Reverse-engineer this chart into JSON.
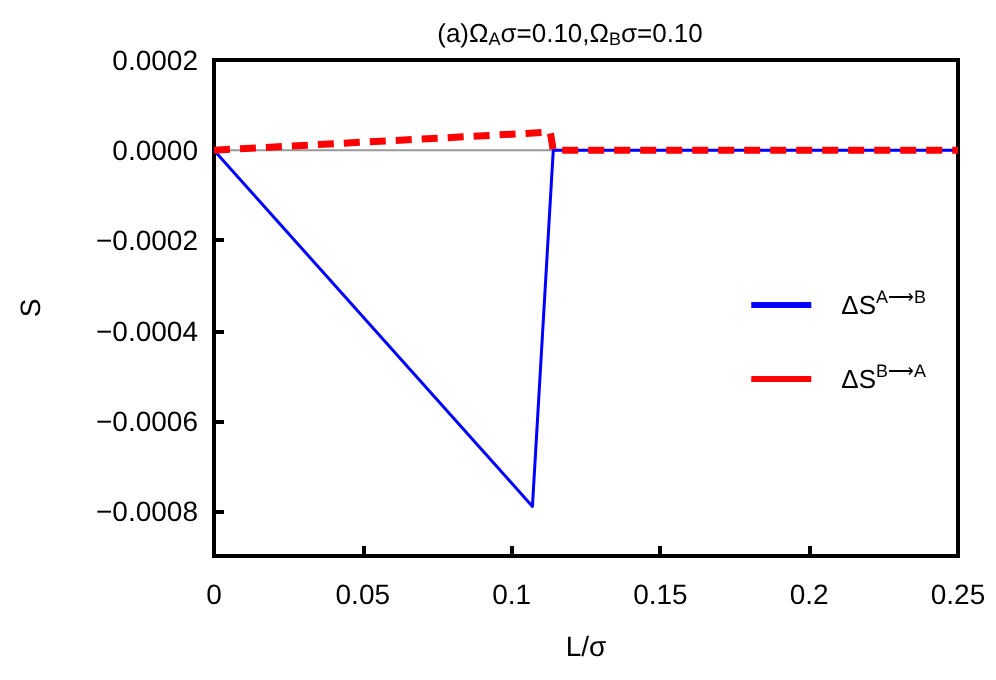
{
  "chart_data": {
    "type": "line",
    "title": "(a)Ω$_{A}$σ=0.10,Ω$_{B}$σ=0.10",
    "xlabel": "L/σ",
    "ylabel": "S",
    "series": [
      {
        "name": "ΔS$^{A⟶B}$",
        "color": "#0000ff",
        "x": [
          0,
          0.107,
          0.114,
          0.25
        ],
        "values": [
          0,
          -0.00079,
          0,
          0
        ],
        "line_style": "solid"
      },
      {
        "name": "ΔS$^{B⟶A}$",
        "color": "#ff0000",
        "x": [
          0,
          0.113,
          0.114,
          0.25
        ],
        "values": [
          0,
          4e-05,
          0,
          0
        ],
        "line_style": "dashed"
      }
    ],
    "xlim": [
      0,
      0.25
    ],
    "xticks": [
      0,
      0.05,
      0.1,
      0.15,
      0.2,
      0.25
    ],
    "ylim": [
      -0.0009,
      0.0002
    ],
    "yticks": [
      {
        "value": 0.0002,
        "label": "0.0002"
      },
      {
        "value": 0,
        "label": "0.0000"
      },
      {
        "value": -0.0002,
        "label": "−0.0002"
      },
      {
        "value": -0.0004,
        "label": "−0.0004"
      },
      {
        "value": -0.0006,
        "label": "−0.0006"
      },
      {
        "value": -0.0008,
        "label": "−0.0008"
      }
    ],
    "ref_lines": [
      {
        "axis": "y",
        "value": 0,
        "color": "#999999"
      }
    ],
    "grid": false,
    "legend": "right",
    "marker": "none"
  }
}
